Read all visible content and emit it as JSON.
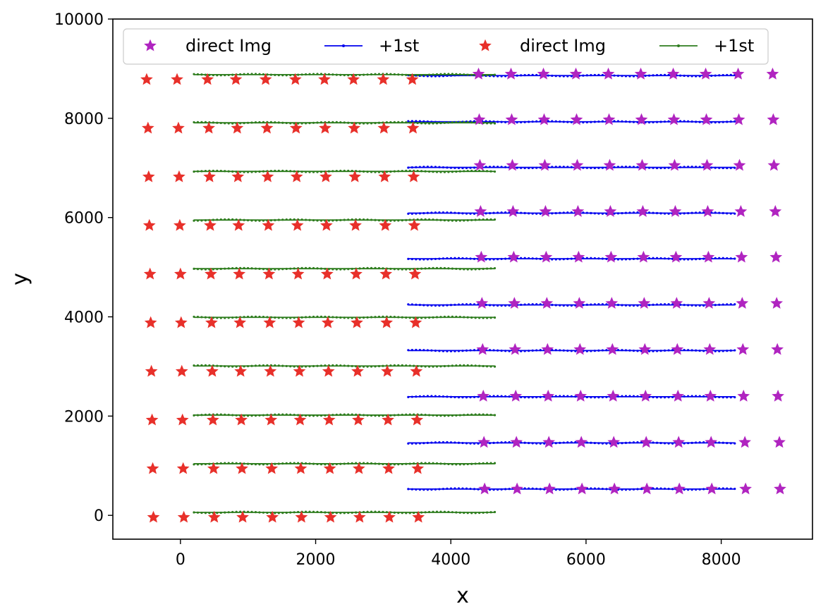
{
  "chart_data": {
    "type": "scatter",
    "title": "",
    "xlabel": "x",
    "ylabel": "y",
    "xlim": [
      -1000,
      9350
    ],
    "ylim": [
      -480,
      10000
    ],
    "xticks": [
      0,
      2000,
      4000,
      6000,
      8000
    ],
    "yticks": [
      0,
      2000,
      4000,
      6000,
      8000,
      10000
    ],
    "grid": false,
    "legend_position": "top",
    "colors": {
      "purple_star": "#b024c0",
      "red_star": "#e8302a",
      "blue_line": "#0000ee",
      "green_line": "#2e7d1e"
    },
    "series": [
      {
        "name": "direct Img",
        "kind": "star",
        "color": "#b024c0",
        "rows": [
          {
            "y": 530,
            "x": [
              4500,
              4980,
              5460,
              5940,
              6420,
              6900,
              7380,
              7860,
              8360,
              8870
            ]
          },
          {
            "y": 1470,
            "x": [
              4490,
              4970,
              5450,
              5930,
              6410,
              6890,
              7370,
              7850,
              8350,
              8860
            ]
          },
          {
            "y": 2400,
            "x": [
              4480,
              4960,
              5440,
              5920,
              6400,
              6880,
              7360,
              7840,
              8330,
              8840
            ]
          },
          {
            "y": 3340,
            "x": [
              4470,
              4950,
              5430,
              5910,
              6390,
              6870,
              7350,
              7830,
              8320,
              8830
            ]
          },
          {
            "y": 4270,
            "x": [
              4460,
              4940,
              5420,
              5900,
              6380,
              6860,
              7340,
              7820,
              8310,
              8820
            ]
          },
          {
            "y": 5200,
            "x": [
              4450,
              4930,
              5410,
              5890,
              6370,
              6850,
              7330,
              7810,
              8300,
              8810
            ]
          },
          {
            "y": 6120,
            "x": [
              4440,
              4920,
              5400,
              5880,
              6360,
              6840,
              7320,
              7800,
              8290,
              8800
            ]
          },
          {
            "y": 7050,
            "x": [
              4430,
              4910,
              5390,
              5870,
              6350,
              6830,
              7310,
              7790,
              8270,
              8780
            ]
          },
          {
            "y": 7970,
            "x": [
              4420,
              4900,
              5380,
              5860,
              6340,
              6820,
              7300,
              7780,
              8260,
              8770
            ]
          },
          {
            "y": 8890,
            "x": [
              4410,
              4890,
              5370,
              5850,
              6330,
              6810,
              7290,
              7770,
              8250,
              8760
            ]
          }
        ]
      },
      {
        "name": "+1st",
        "kind": "line",
        "color": "#0000ee",
        "x_range": [
          3370,
          8200
        ],
        "row_y": [
          530,
          1460,
          2390,
          3320,
          4240,
          5170,
          6090,
          7010,
          7930,
          8860
        ]
      },
      {
        "name": "direct Img",
        "kind": "star",
        "color": "#e8302a",
        "rows": [
          {
            "y": -40,
            "x": [
              -400,
              50,
              500,
              920,
              1360,
              1790,
              2220,
              2650,
              3090,
              3520
            ]
          },
          {
            "y": 940,
            "x": [
              -410,
              40,
              490,
              910,
              1350,
              1780,
              2210,
              2640,
              3080,
              3510
            ]
          },
          {
            "y": 1920,
            "x": [
              -420,
              30,
              480,
              900,
              1340,
              1770,
              2200,
              2630,
              3070,
              3500
            ]
          },
          {
            "y": 2900,
            "x": [
              -430,
              20,
              470,
              890,
              1330,
              1760,
              2190,
              2620,
              3060,
              3490
            ]
          },
          {
            "y": 3880,
            "x": [
              -440,
              10,
              460,
              880,
              1320,
              1750,
              2180,
              2610,
              3050,
              3480
            ]
          },
          {
            "y": 4860,
            "x": [
              -450,
              0,
              450,
              870,
              1310,
              1740,
              2170,
              2600,
              3040,
              3470
            ]
          },
          {
            "y": 5840,
            "x": [
              -460,
              -10,
              440,
              860,
              1300,
              1730,
              2160,
              2590,
              3030,
              3460
            ]
          },
          {
            "y": 6820,
            "x": [
              -470,
              -20,
              430,
              850,
              1290,
              1720,
              2150,
              2580,
              3020,
              3450
            ]
          },
          {
            "y": 7800,
            "x": [
              -480,
              -30,
              420,
              840,
              1280,
              1710,
              2140,
              2570,
              3010,
              3440
            ]
          },
          {
            "y": 8780,
            "x": [
              -500,
              -50,
              400,
              820,
              1260,
              1700,
              2130,
              2560,
              3000,
              3430
            ]
          }
        ]
      },
      {
        "name": "+1st",
        "kind": "line",
        "color": "#2e7d1e",
        "x_range": [
          200,
          4650
        ],
        "row_y": [
          60,
          1040,
          2020,
          3010,
          3990,
          4970,
          5950,
          6930,
          7910,
          8880
        ]
      }
    ]
  }
}
